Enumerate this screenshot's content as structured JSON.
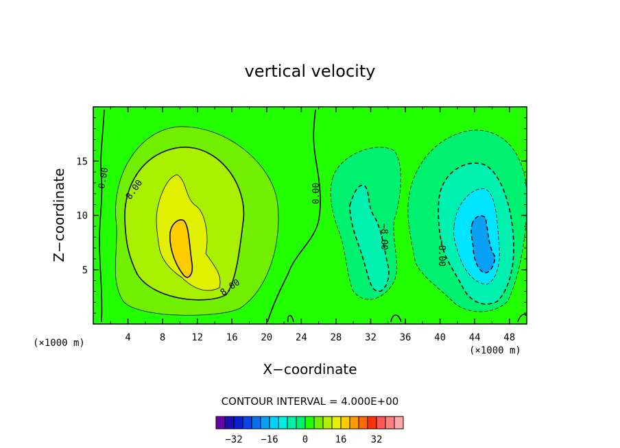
{
  "chart_data": {
    "type": "heatmap",
    "title": "vertical velocity",
    "xlabel": "X−coordinate",
    "ylabel": "Z−coordinate",
    "x_unit_left": "(×1000 m)",
    "x_unit_right": "(×1000 m)",
    "xlim": [
      0,
      50
    ],
    "ylim": [
      0,
      20
    ],
    "x_ticks": [
      4,
      8,
      12,
      16,
      20,
      24,
      28,
      32,
      36,
      40,
      44,
      48
    ],
    "y_ticks": [
      5,
      10,
      15
    ],
    "contour_interval_text": "CONTOUR INTERVAL = 4.000E+00",
    "contour_labels": [
      "0.00",
      "8.00",
      "8.00",
      "0.00",
      "−8.00",
      "−8.00"
    ],
    "colorbar": {
      "levels": [
        -36,
        -32,
        -28,
        -24,
        -20,
        -16,
        -12,
        -8,
        -4,
        0,
        4,
        8,
        12,
        16,
        20,
        24,
        28,
        32,
        36
      ],
      "colors": [
        "#6a00a8",
        "#1b0fb4",
        "#0a1fd0",
        "#0a44e6",
        "#0a6ef0",
        "#0aa0f5",
        "#00d2ff",
        "#00f0e0",
        "#00f0a8",
        "#00f070",
        "#22ff00",
        "#70f000",
        "#b0f000",
        "#e8f000",
        "#ffcc00",
        "#ff9900",
        "#ff6a00",
        "#ff3300",
        "#ff5a5a",
        "#ff8080",
        "#ffa8a8"
      ],
      "tick_labels": [
        "−32",
        "−16",
        "0",
        "16",
        "32"
      ],
      "tick_values": [
        -32,
        -16,
        0,
        16,
        32
      ]
    },
    "fields": {
      "background_color": "#22ff00",
      "updraft_core_x": 10,
      "updraft_core_z": 7.5,
      "updraft_max": 20,
      "downdraft_core_x": 44.5,
      "downdraft_core_z": 7,
      "downdraft_min": -16
    }
  }
}
